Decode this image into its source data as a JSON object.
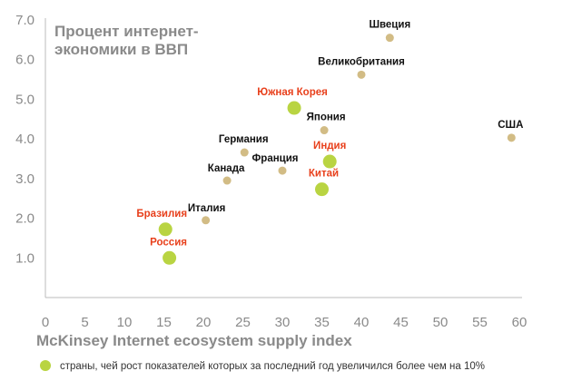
{
  "chart_data": {
    "type": "scatter",
    "title_lines": [
      "Процент интернет-",
      "экономики в ВВП"
    ],
    "xlabel": "McKinsey Internet ecosystem supply index",
    "ylabel": "",
    "xlim": [
      0,
      60
    ],
    "ylim": [
      0,
      7
    ],
    "x_ticks": [
      "0",
      "5",
      "10",
      "15",
      "20",
      "25",
      "30",
      "35",
      "40",
      "45",
      "50",
      "55",
      "60"
    ],
    "y_ticks": [
      "1.0",
      "2.0",
      "3.0",
      "4.0",
      "5.0",
      "6.0",
      "7.0"
    ],
    "grid": false,
    "legend": {
      "text": "страны, чей рост показателей которых за последний год увеличился более чем на 10%",
      "position": "bottom-left"
    },
    "colors": {
      "normal_point": "#d2bc85",
      "growth_point": "#b9d442",
      "normal_label": "#111111",
      "growth_label": "#e8401c",
      "axis": "#bbbbbb",
      "text_gray": "#8a8a8a"
    },
    "points": [
      {
        "label": "Швеция",
        "x": 43.6,
        "y": 6.55,
        "growth": false
      },
      {
        "label": "Великобритания",
        "x": 40.0,
        "y": 5.62,
        "growth": false
      },
      {
        "label": "Южная Корея",
        "x": 31.5,
        "y": 4.78,
        "growth": true
      },
      {
        "label": "Япония",
        "x": 35.3,
        "y": 4.22,
        "growth": false
      },
      {
        "label": "США",
        "x": 59.0,
        "y": 4.03,
        "growth": false
      },
      {
        "label": "Германия",
        "x": 25.2,
        "y": 3.66,
        "growth": false
      },
      {
        "label": "Индия",
        "x": 36.0,
        "y": 3.43,
        "growth": true
      },
      {
        "label": "Франция",
        "x": 30.0,
        "y": 3.2,
        "growth": false
      },
      {
        "label": "Канада",
        "x": 23.0,
        "y": 2.95,
        "growth": false
      },
      {
        "label": "Китай",
        "x": 35.0,
        "y": 2.73,
        "growth": true
      },
      {
        "label": "Италия",
        "x": 20.3,
        "y": 1.95,
        "growth": false
      },
      {
        "label": "Бразилия",
        "x": 15.2,
        "y": 1.72,
        "growth": true
      },
      {
        "label": "Россия",
        "x": 15.7,
        "y": 1.0,
        "growth": true
      }
    ]
  }
}
